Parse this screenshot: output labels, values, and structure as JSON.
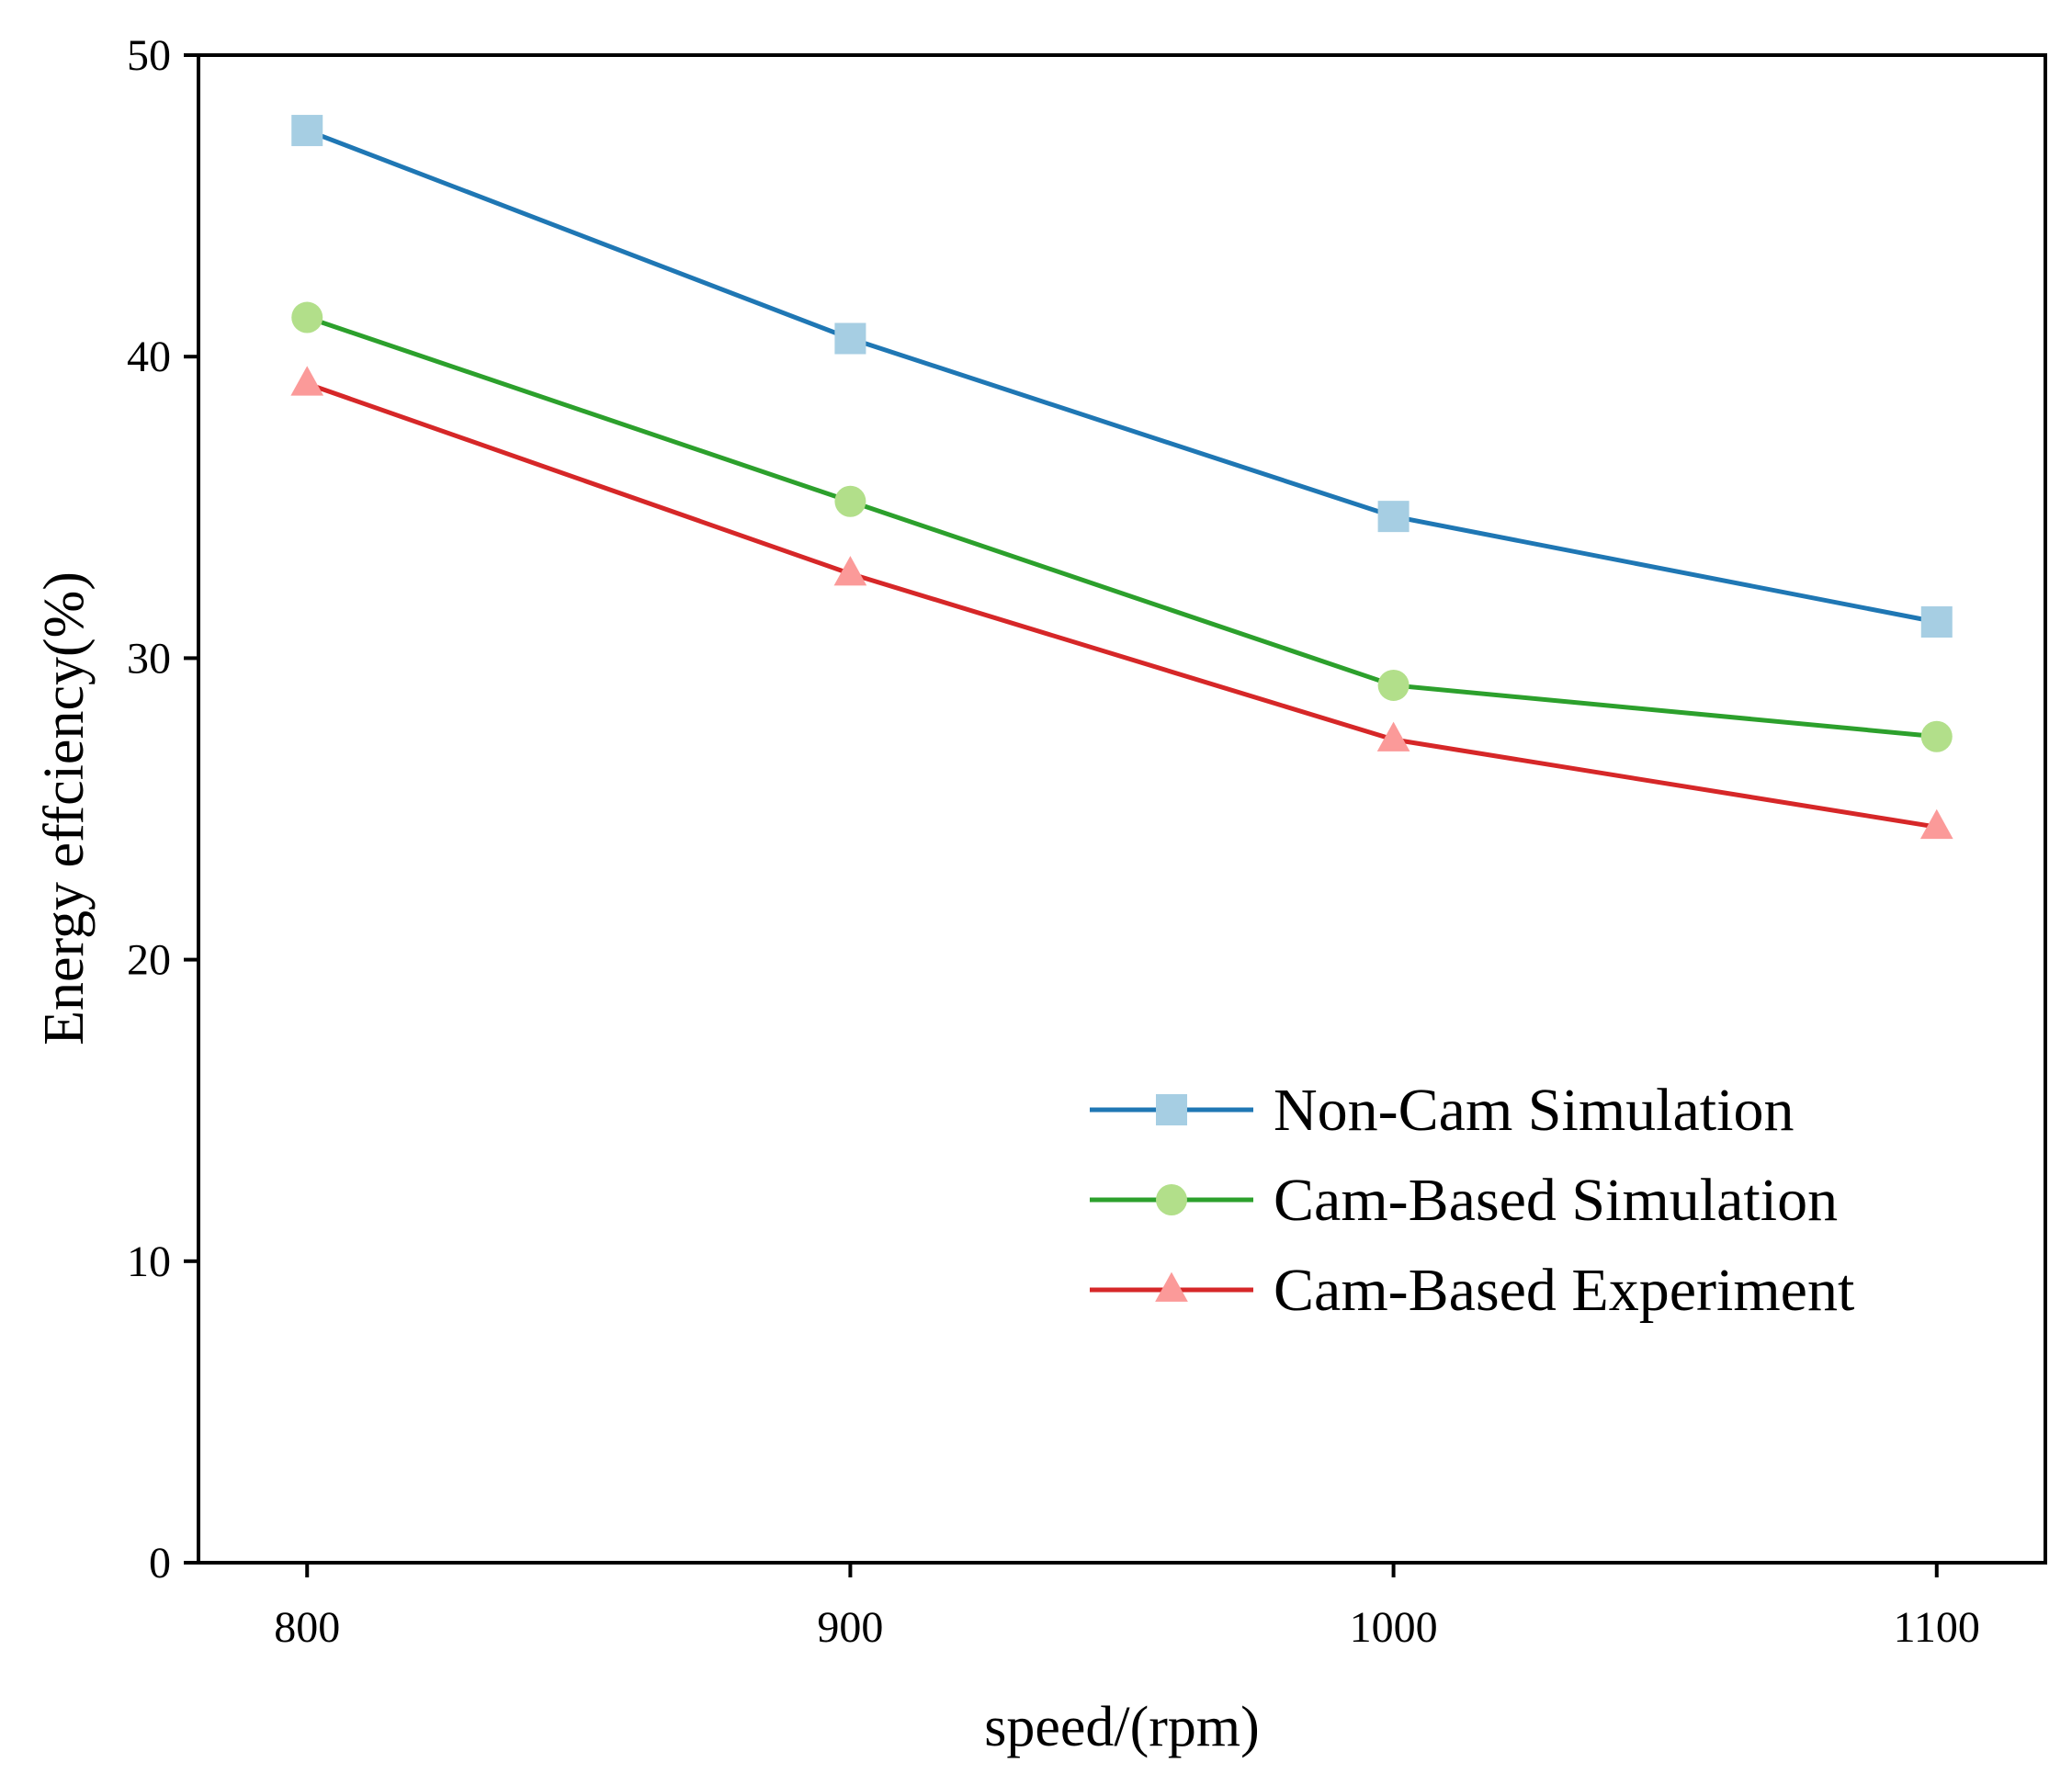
{
  "chart_data": {
    "type": "line",
    "title": "",
    "xlabel": "speed/(rpm)",
    "ylabel": "Energy effciency(%)",
    "x": [
      800,
      900,
      1000,
      1100
    ],
    "xlim": [
      780,
      1120
    ],
    "ylim": [
      0,
      50
    ],
    "xticks": [
      "800",
      "900",
      "1000",
      "1100"
    ],
    "yticks": [
      "0",
      "10",
      "20",
      "30",
      "40",
      "50"
    ],
    "grid": false,
    "legend_position": "bottom-right",
    "series": [
      {
        "name": "Non-Cam Simulation",
        "values": [
          47.5,
          40.6,
          34.7,
          31.2
        ],
        "line_color": "#1f77b4",
        "marker": "square",
        "marker_color": "#a6cee3"
      },
      {
        "name": "Cam-Based Simulation",
        "values": [
          41.3,
          35.2,
          29.1,
          27.4
        ],
        "line_color": "#2ca02c",
        "marker": "circle",
        "marker_color": "#b2df8a"
      },
      {
        "name": "Cam-Based Experiment",
        "values": [
          39.1,
          32.8,
          27.3,
          24.4
        ],
        "line_color": "#d62728",
        "marker": "triangle",
        "marker_color": "#fb9a99"
      }
    ]
  }
}
